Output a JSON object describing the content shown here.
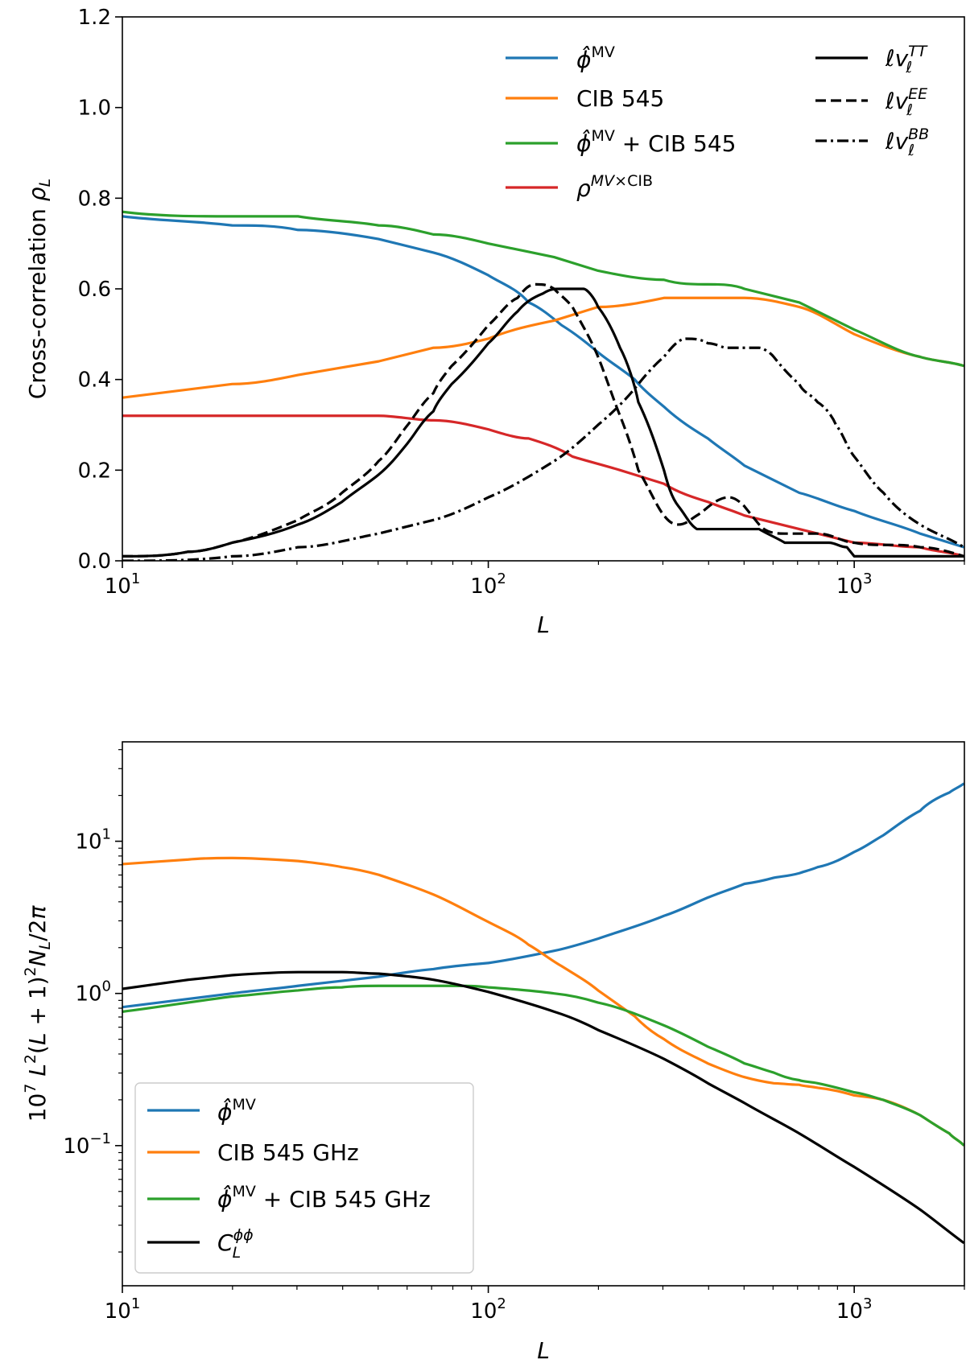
{
  "colors": {
    "blue": "#1f77b4",
    "orange": "#ff7f0e",
    "green": "#2ca02c",
    "red": "#d62728",
    "black": "#000000"
  },
  "chart_data": [
    {
      "type": "line",
      "xscale": "log",
      "xlim": [
        10,
        2000
      ],
      "ylim": [
        0,
        1.2
      ],
      "xlabel": "L",
      "ylabel": "Cross-correlation ρ_L",
      "xticks": [
        10,
        100,
        1000
      ],
      "xtick_labels": [
        "10^1",
        "10^2",
        "10^3"
      ],
      "yticks": [
        0.0,
        0.2,
        0.4,
        0.6,
        0.8,
        1.0,
        1.2
      ],
      "ytick_labels": [
        "0.0",
        "0.2",
        "0.4",
        "0.6",
        "0.8",
        "1.0",
        "1.2"
      ],
      "legend_placement": "upper-right, two columns",
      "series": [
        {
          "name": "φ̂^MV",
          "color": "#1f77b4",
          "style": "solid",
          "x": [
            10,
            20,
            30,
            50,
            70,
            100,
            130,
            160,
            200,
            250,
            300,
            400,
            500,
            700,
            1000,
            1500,
            2000
          ],
          "y": [
            0.755,
            0.745,
            0.735,
            0.71,
            0.68,
            0.63,
            0.575,
            0.52,
            0.46,
            0.395,
            0.34,
            0.265,
            0.21,
            0.155,
            0.11,
            0.06,
            0.03
          ]
        },
        {
          "name": "CIB 545",
          "color": "#ff7f0e",
          "style": "solid",
          "x": [
            10,
            20,
            30,
            50,
            70,
            100,
            150,
            200,
            300,
            400,
            500,
            700,
            1000,
            1500,
            2000
          ],
          "y": [
            0.365,
            0.385,
            0.405,
            0.44,
            0.465,
            0.495,
            0.53,
            0.555,
            0.578,
            0.585,
            0.583,
            0.56,
            0.5,
            0.445,
            0.435
          ]
        },
        {
          "name": "φ̂^MV + CIB 545",
          "color": "#2ca02c",
          "style": "solid",
          "x": [
            10,
            20,
            30,
            50,
            70,
            100,
            150,
            200,
            300,
            400,
            500,
            700,
            1000,
            1500,
            2000
          ],
          "y": [
            0.765,
            0.76,
            0.755,
            0.74,
            0.725,
            0.7,
            0.665,
            0.64,
            0.618,
            0.61,
            0.602,
            0.57,
            0.51,
            0.445,
            0.435
          ]
        },
        {
          "name": "ρ^{MV×CIB}",
          "color": "#d62728",
          "style": "solid",
          "x": [
            10,
            20,
            30,
            50,
            70,
            100,
            130,
            170,
            230,
            300,
            400,
            500,
            700,
            1000,
            1500,
            2000
          ],
          "y": [
            0.322,
            0.322,
            0.321,
            0.318,
            0.31,
            0.29,
            0.265,
            0.235,
            0.2,
            0.165,
            0.13,
            0.105,
            0.07,
            0.045,
            0.025,
            0.015
          ]
        },
        {
          "name": "ℓv_ℓ^{TT}",
          "color": "#000000",
          "style": "solid",
          "x": [
            10,
            15,
            20,
            30,
            40,
            50,
            60,
            70,
            80,
            100,
            120,
            140,
            160,
            180,
            200,
            230,
            260,
            300,
            330,
            370,
            420,
            470,
            550,
            650,
            750,
            850,
            950,
            1000,
            1100,
            1300,
            1600,
            2000
          ],
          "y": [
            0.008,
            0.02,
            0.04,
            0.08,
            0.13,
            0.19,
            0.26,
            0.33,
            0.39,
            0.48,
            0.55,
            0.59,
            0.605,
            0.6,
            0.565,
            0.47,
            0.35,
            0.2,
            0.12,
            0.075,
            0.07,
            0.075,
            0.065,
            0.04,
            0.035,
            0.04,
            0.025,
            0.015,
            0.01,
            0.012,
            0.01,
            0.01
          ]
        },
        {
          "name": "ℓv_ℓ^{EE}",
          "color": "#000000",
          "style": "dashed",
          "x": [
            10,
            15,
            20,
            30,
            40,
            50,
            60,
            70,
            80,
            100,
            120,
            135,
            150,
            170,
            200,
            230,
            260,
            300,
            330,
            370,
            420,
            460,
            500,
            550,
            650,
            800,
            1000,
            1500,
            2000
          ],
          "y": [
            0.005,
            0.018,
            0.04,
            0.09,
            0.15,
            0.22,
            0.3,
            0.37,
            0.43,
            0.52,
            0.585,
            0.61,
            0.6,
            0.56,
            0.45,
            0.32,
            0.2,
            0.1,
            0.08,
            0.1,
            0.13,
            0.14,
            0.12,
            0.08,
            0.055,
            0.06,
            0.04,
            0.03,
            0.015
          ]
        },
        {
          "name": "ℓv_ℓ^{BB}",
          "color": "#000000",
          "style": "dashdot",
          "x": [
            10,
            20,
            30,
            50,
            70,
            100,
            150,
            200,
            250,
            300,
            350,
            400,
            450,
            500,
            550,
            600,
            700,
            800,
            900,
            1000,
            1200,
            1500,
            2000
          ],
          "y": [
            0.002,
            0.01,
            0.025,
            0.06,
            0.09,
            0.14,
            0.22,
            0.3,
            0.38,
            0.45,
            0.49,
            0.485,
            0.47,
            0.47,
            0.475,
            0.45,
            0.39,
            0.35,
            0.3,
            0.23,
            0.15,
            0.08,
            0.03
          ]
        }
      ]
    },
    {
      "type": "line",
      "xscale": "log",
      "yscale": "log",
      "xlim": [
        10,
        2000
      ],
      "ylim": [
        0.012,
        45
      ],
      "xlabel": "L",
      "ylabel": "10^7 L^2(L+1)^2 N_L/2π",
      "xticks": [
        10,
        100,
        1000
      ],
      "xtick_labels": [
        "10^1",
        "10^2",
        "10^3"
      ],
      "yticks": [
        0.1,
        1,
        10
      ],
      "ytick_labels": [
        "10^−1",
        "10^0",
        "10^1"
      ],
      "legend_placement": "lower-left",
      "series": [
        {
          "name": "φ̂^MV",
          "color": "#1f77b4",
          "style": "solid",
          "x": [
            10,
            20,
            30,
            50,
            70,
            100,
            150,
            200,
            300,
            400,
            500,
            600,
            700,
            800,
            1000,
            1200,
            1500,
            1800,
            2000
          ],
          "y": [
            0.82,
            1.0,
            1.12,
            1.3,
            1.45,
            1.6,
            1.9,
            2.3,
            3.2,
            4.3,
            5.2,
            5.7,
            6.1,
            6.7,
            8.5,
            11,
            16,
            21,
            24
          ]
        },
        {
          "name": "CIB 545 GHz",
          "color": "#ff7f0e",
          "style": "solid",
          "x": [
            10,
            15,
            20,
            30,
            40,
            50,
            70,
            100,
            130,
            160,
            200,
            250,
            300,
            400,
            500,
            600,
            700,
            800,
            1000,
            1200,
            1500,
            1800,
            2000
          ],
          "y": [
            7.0,
            7.6,
            7.7,
            7.4,
            6.8,
            6.0,
            4.5,
            2.95,
            2.1,
            1.5,
            1.05,
            0.7,
            0.5,
            0.35,
            0.28,
            0.26,
            0.25,
            0.24,
            0.215,
            0.2,
            0.16,
            0.12,
            0.1
          ]
        },
        {
          "name": "φ̂^MV + CIB 545 GHz",
          "color": "#2ca02c",
          "style": "solid",
          "x": [
            10,
            20,
            30,
            40,
            50,
            60,
            80,
            100,
            150,
            200,
            300,
            400,
            500,
            600,
            700,
            800,
            1000,
            1200,
            1500,
            1800,
            2000
          ],
          "y": [
            0.76,
            0.95,
            1.05,
            1.1,
            1.12,
            1.13,
            1.12,
            1.1,
            1.0,
            0.88,
            0.62,
            0.45,
            0.35,
            0.3,
            0.27,
            0.255,
            0.225,
            0.2,
            0.16,
            0.12,
            0.1
          ]
        },
        {
          "name": "C_L^{φφ}",
          "color": "#000000",
          "style": "solid",
          "x": [
            10,
            15,
            20,
            30,
            40,
            50,
            70,
            100,
            150,
            200,
            300,
            400,
            500,
            700,
            1000,
            1500,
            2000
          ],
          "y": [
            1.08,
            1.22,
            1.31,
            1.38,
            1.38,
            1.34,
            1.22,
            1.02,
            0.76,
            0.58,
            0.37,
            0.26,
            0.19,
            0.12,
            0.072,
            0.038,
            0.023
          ]
        }
      ]
    }
  ]
}
